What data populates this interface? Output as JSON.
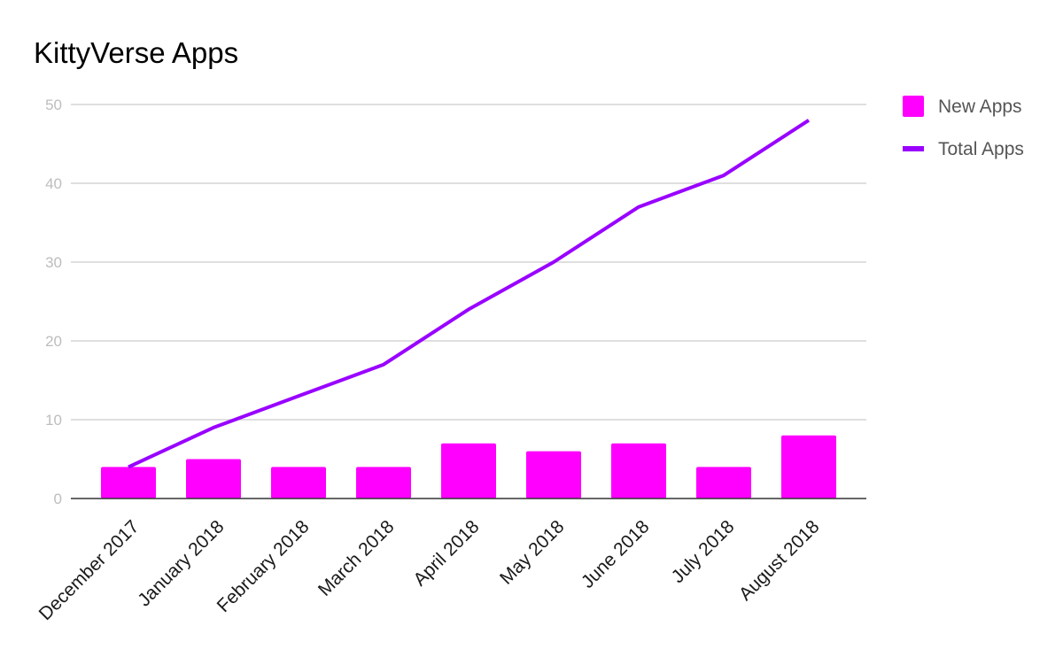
{
  "chart_data": {
    "type": "bar",
    "title": "KittyVerse Apps",
    "categories": [
      "December 2017",
      "January 2018",
      "February 2018",
      "March 2018",
      "April 2018",
      "May 2018",
      "June 2018",
      "July 2018",
      "August 2018"
    ],
    "series": [
      {
        "name": "New Apps",
        "type": "bar",
        "color": "#ff00ff",
        "values": [
          4,
          5,
          4,
          4,
          7,
          6,
          7,
          4,
          8
        ]
      },
      {
        "name": "Total Apps",
        "type": "line",
        "color": "#9900ff",
        "values": [
          4,
          9,
          13,
          17,
          24,
          30,
          37,
          41,
          48
        ]
      }
    ],
    "ylim": [
      0,
      50
    ],
    "yticks": [
      0,
      10,
      20,
      30,
      40,
      50
    ],
    "grid": true,
    "legend_position": "right"
  }
}
